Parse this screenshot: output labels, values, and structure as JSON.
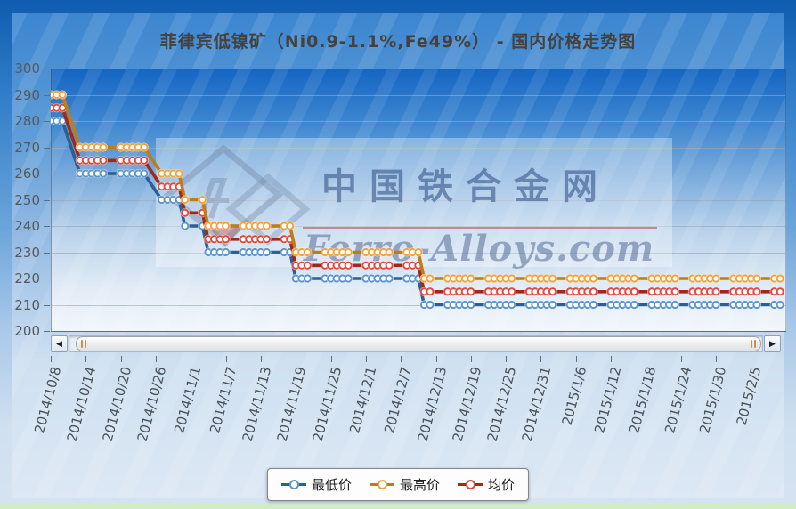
{
  "title": "菲律宾低镍矿（Ni0.9-1.1%,Fe49%） - 国内价格走势图",
  "watermark": {
    "cn": "中国铁合金网",
    "en": "Ferro-Alloys.com"
  },
  "scrollbar": {
    "left_arrow": "◀",
    "right_arrow": "▶"
  },
  "chart_data": {
    "type": "line",
    "title": "菲律宾低镍矿（Ni0.9-1.1%,Fe49%） - 国内价格走势图",
    "ylim": [
      200,
      300
    ],
    "y_ticks": [
      300,
      290,
      280,
      270,
      260,
      250,
      240,
      230,
      220,
      210,
      200
    ],
    "x_tick_labels": [
      "2014/10/8",
      "2014/10/14",
      "2014/10/20",
      "2014/10/26",
      "2014/11/1",
      "2014/11/7",
      "2014/11/13",
      "2014/11/19",
      "2014/11/25",
      "2014/12/1",
      "2014/12/7",
      "2014/12/13",
      "2014/12/19",
      "2014/12/25",
      "2014/12/31",
      "2015/1/6",
      "2015/1/12",
      "2015/1/18",
      "2015/1/24",
      "2015/1/30",
      "2015/2/5"
    ],
    "x_days_per_tick": 6,
    "date_start": "2014-10-08",
    "date_end": "2015-02-11",
    "weekdays_only": true,
    "grid": true,
    "legend_position": "bottom",
    "series": [
      {
        "name": "最低价",
        "role": "low",
        "line_color": "#2e5f93",
        "ring_color": "#5e95cc"
      },
      {
        "name": "最高价",
        "role": "high",
        "line_color": "#c07c16",
        "ring_color": "#f2a33c"
      },
      {
        "name": "均价",
        "role": "avg",
        "line_color": "#9e2a1c",
        "ring_color": "#df4a3a"
      }
    ],
    "steps": [
      {
        "from": "2014-10-08",
        "low": 280,
        "avg": 285,
        "high": 290
      },
      {
        "from": "2014-10-13",
        "low": 260,
        "avg": 265,
        "high": 270
      },
      {
        "from": "2014-10-27",
        "low": 250,
        "avg": 255,
        "high": 260
      },
      {
        "from": "2014-10-31",
        "low": 240,
        "avg": 245,
        "high": 250
      },
      {
        "from": "2014-11-04",
        "low": 230,
        "avg": 235,
        "high": 240
      },
      {
        "from": "2014-11-19",
        "low": 220,
        "avg": 225,
        "high": 230
      },
      {
        "from": "2014-12-11",
        "low": 210,
        "avg": 215,
        "high": 220
      }
    ]
  }
}
